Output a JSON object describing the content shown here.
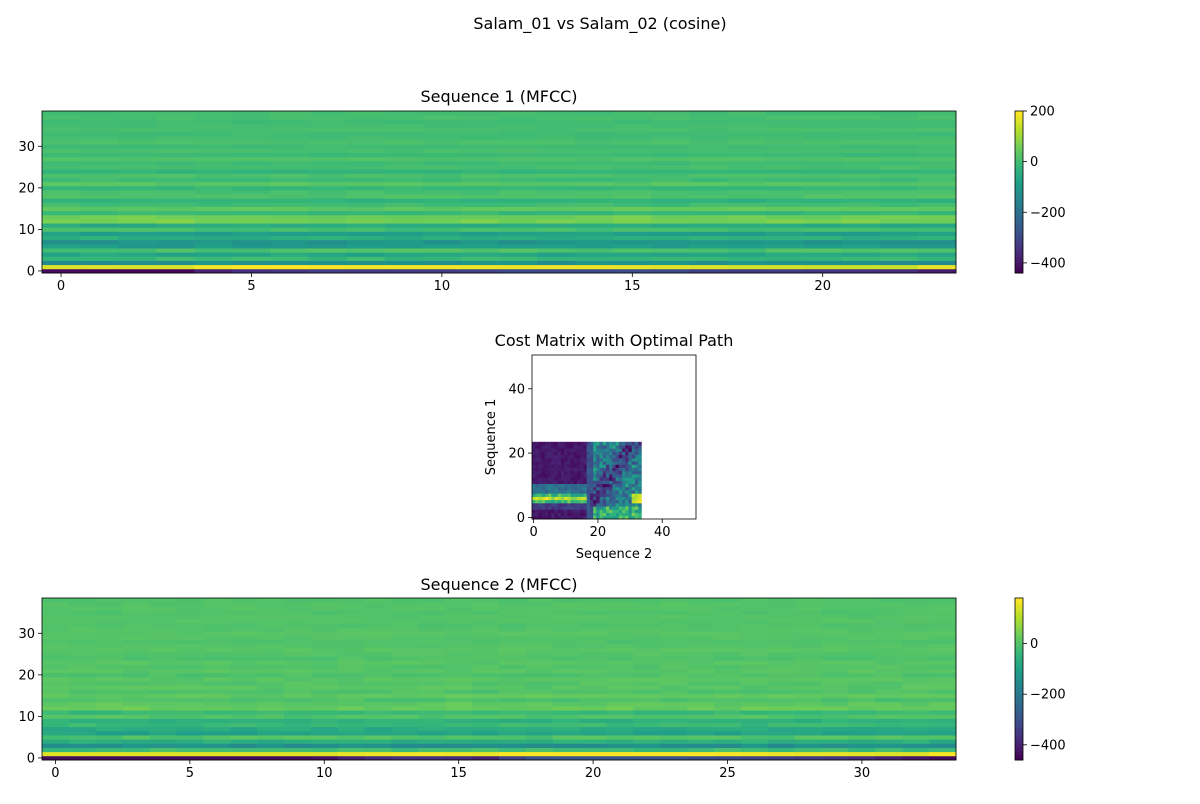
{
  "figure": {
    "suptitle": "Salam_01 vs Salam_02 (cosine)"
  },
  "chart_data": [
    {
      "type": "heatmap",
      "title": "Sequence 1 (MFCC)",
      "xlabel": "",
      "ylabel": "",
      "n_frames": 24,
      "n_coeffs": 39,
      "xlim": [
        -0.5,
        23.5
      ],
      "ylim": [
        -0.5,
        38.5
      ],
      "x_ticks": [
        0,
        5,
        10,
        15,
        20
      ],
      "y_ticks": [
        0,
        10,
        20,
        30
      ],
      "colormap": "viridis",
      "clim": [
        -440,
        200
      ],
      "colorbar_ticks": [
        200,
        0,
        -200,
        -400
      ],
      "c0_values": [
        -420,
        -430,
        -430,
        -430,
        -380,
        -350,
        -340,
        -320,
        -330,
        -330,
        -320,
        -310,
        -300,
        -300,
        -300,
        -290,
        -300,
        -320,
        -330,
        -330,
        -340,
        -350,
        -360,
        -390
      ],
      "c1_values": [
        170,
        170,
        170,
        170,
        190,
        200,
        200,
        195,
        190,
        190,
        190,
        185,
        185,
        185,
        185,
        180,
        175,
        170,
        160,
        160,
        155,
        150,
        150,
        180
      ],
      "row_baselines": [
        -420,
        170,
        -120,
        -10,
        -60,
        15,
        -90,
        -110,
        -40,
        -80,
        5,
        -50,
        70,
        60,
        -10,
        40,
        0,
        -30,
        20,
        10,
        -10,
        30,
        0,
        15,
        -20,
        10,
        0,
        20,
        -5,
        10,
        0,
        15,
        5,
        0,
        10,
        5,
        0,
        10,
        5
      ]
    },
    {
      "type": "heatmap",
      "title": "Cost Matrix with Optimal Path",
      "xlabel": "Sequence 2",
      "ylabel": "Sequence 1",
      "rows": 24,
      "cols": 34,
      "xlim": [
        -0.5,
        50.5
      ],
      "ylim": [
        -0.5,
        50.5
      ],
      "x_ticks": [
        0,
        20,
        40
      ],
      "y_ticks": [
        0,
        20,
        40
      ],
      "colormap": "viridis"
    },
    {
      "type": "heatmap",
      "title": "Sequence 2 (MFCC)",
      "xlabel": "",
      "ylabel": "",
      "n_frames": 34,
      "n_coeffs": 39,
      "xlim": [
        -0.5,
        33.5
      ],
      "ylim": [
        -0.5,
        38.5
      ],
      "x_ticks": [
        0,
        5,
        10,
        15,
        20,
        25,
        30
      ],
      "y_ticks": [
        0,
        10,
        20,
        30
      ],
      "colormap": "viridis",
      "clim": [
        -460,
        180
      ],
      "colorbar_ticks": [
        0,
        -200,
        -400
      ],
      "c0_values": [
        -440,
        -440,
        -440,
        -440,
        -440,
        -440,
        -440,
        -440,
        -440,
        -440,
        -430,
        -400,
        -380,
        -370,
        -370,
        -380,
        -400,
        -330,
        -300,
        -290,
        -290,
        -290,
        -300,
        -300,
        -310,
        -320,
        -330,
        -340,
        -350,
        -360,
        -380,
        -400,
        -420,
        -440
      ],
      "c1_values": [
        150,
        150,
        150,
        150,
        150,
        150,
        150,
        150,
        150,
        150,
        150,
        160,
        165,
        170,
        170,
        165,
        160,
        180,
        180,
        180,
        180,
        180,
        180,
        180,
        180,
        175,
        170,
        165,
        160,
        160,
        155,
        150,
        150,
        175
      ],
      "row_baselines": [
        -440,
        160,
        -20,
        -140,
        -60,
        0,
        -90,
        -70,
        -30,
        -50,
        0,
        -30,
        30,
        20,
        0,
        20,
        0,
        10,
        5,
        10,
        0,
        10,
        5,
        10,
        0,
        5,
        10,
        5,
        0,
        5,
        10,
        5,
        0,
        5,
        5,
        0,
        5,
        5,
        0
      ]
    }
  ]
}
